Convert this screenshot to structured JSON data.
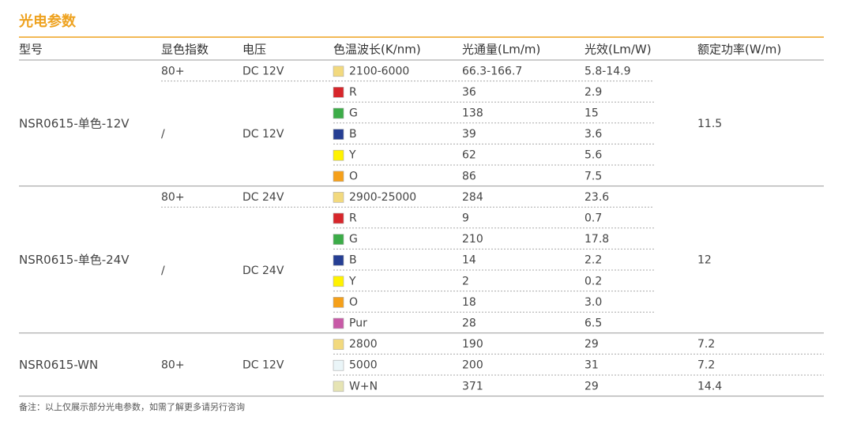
{
  "title": "光电参数",
  "header": [
    "型号",
    "显色指数",
    "电压",
    "色温波长(K/nm)",
    "光通量(Lm/m)",
    "光效(Lm/W)",
    "额定功率(W/m)"
  ],
  "groups": [
    {
      "model": "NSR0615-单色-12V",
      "power": "11.5",
      "subgroups": [
        {
          "cri": "80+",
          "voltage": "DC 12V",
          "rows": [
            {
              "swatch": "#f2d97e",
              "cct": "2100-6000",
              "flux": "66.3-166.7",
              "efficacy": "5.8-14.9"
            }
          ]
        },
        {
          "cri": "/",
          "voltage": "DC 12V",
          "rows": [
            {
              "swatch": "#d7262b",
              "cct": "R",
              "flux": "36",
              "efficacy": "2.9"
            },
            {
              "swatch": "#3cac48",
              "cct": "G",
              "flux": "138",
              "efficacy": "15"
            },
            {
              "swatch": "#253e93",
              "cct": "B",
              "flux": "39",
              "efficacy": "3.6"
            },
            {
              "swatch": "#fff200",
              "cct": "Y",
              "flux": "62",
              "efficacy": "5.6"
            },
            {
              "swatch": "#f5a01a",
              "cct": "O",
              "flux": "86",
              "efficacy": "7.5"
            }
          ]
        }
      ]
    },
    {
      "model": "NSR0615-单色-24V",
      "power": "12",
      "subgroups": [
        {
          "cri": "80+",
          "voltage": "DC 24V",
          "rows": [
            {
              "swatch": "#f2d97e",
              "cct": "2900-25000",
              "flux": "284",
              "efficacy": "23.6"
            }
          ]
        },
        {
          "cri": "/",
          "voltage": "DC 24V",
          "rows": [
            {
              "swatch": "#d7262b",
              "cct": "R",
              "flux": "9",
              "efficacy": "0.7"
            },
            {
              "swatch": "#3cac48",
              "cct": "G",
              "flux": "210",
              "efficacy": "17.8"
            },
            {
              "swatch": "#253e93",
              "cct": "B",
              "flux": "14",
              "efficacy": "2.2"
            },
            {
              "swatch": "#fff200",
              "cct": "Y",
              "flux": "2",
              "efficacy": "0.2"
            },
            {
              "swatch": "#f5a01a",
              "cct": "O",
              "flux": "18",
              "efficacy": "3.0"
            },
            {
              "swatch": "#c85aa7",
              "cct": "Pur",
              "flux": "28",
              "efficacy": "6.5"
            }
          ]
        }
      ]
    },
    {
      "model": "NSR0615-WN",
      "subgroups": [
        {
          "cri": "80+",
          "voltage": "DC 12V",
          "rows": [
            {
              "swatch": "#f2d97e",
              "cct": "2800",
              "flux": "190",
              "efficacy": "29",
              "power": "7.2"
            },
            {
              "swatch": "#eaf5f8",
              "cct": "5000",
              "flux": "200",
              "efficacy": "31",
              "power": "7.2"
            },
            {
              "swatch": "#e6e4b4",
              "cct": "W+N",
              "flux": "371",
              "efficacy": "29",
              "power": "14.4"
            }
          ]
        }
      ]
    }
  ],
  "footnote": "备注：以上仅展示部分光电参数，如需了解更多请另行咨询"
}
